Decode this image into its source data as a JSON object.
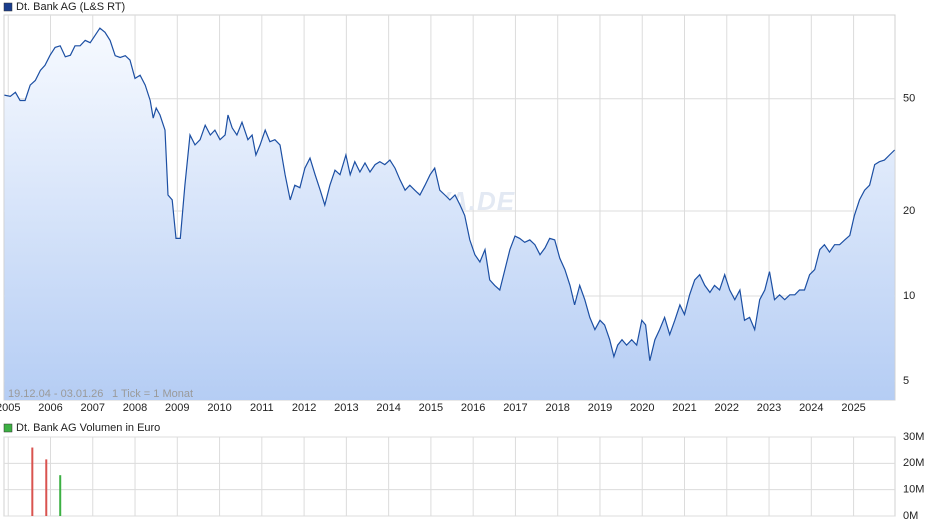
{
  "chart_data": [
    {
      "type": "line",
      "fill": true,
      "fill_gradient": [
        "#f7faff",
        "#b5cdf4"
      ],
      "series": [
        {
          "name": "Dt. Bank AG (L&S RT)",
          "color": "#1c4fa3",
          "legend_color": "#1a3d8c"
        }
      ],
      "x": [
        2004.91,
        2005.05,
        2005.17,
        2005.28,
        2005.4,
        2005.52,
        2005.64,
        2005.76,
        2005.87,
        2005.99,
        2006.11,
        2006.23,
        2006.35,
        2006.47,
        2006.58,
        2006.7,
        2006.82,
        2006.94,
        2007.06,
        2007.17,
        2007.29,
        2007.41,
        2007.53,
        2007.65,
        2007.77,
        2007.88,
        2008.0,
        2008.12,
        2008.24,
        2008.36,
        2008.43,
        2008.5,
        2008.59,
        2008.71,
        2008.78,
        2008.88,
        2008.97,
        2009.07,
        2009.18,
        2009.3,
        2009.42,
        2009.54,
        2009.66,
        2009.78,
        2009.89,
        2010.01,
        2010.13,
        2010.2,
        2010.3,
        2010.41,
        2010.53,
        2010.67,
        2010.77,
        2010.86,
        2010.96,
        2011.08,
        2011.19,
        2011.31,
        2011.43,
        2011.55,
        2011.67,
        2011.78,
        2011.9,
        2012.02,
        2012.14,
        2012.26,
        2012.38,
        2012.49,
        2012.61,
        2012.73,
        2012.85,
        2012.99,
        2013.09,
        2013.2,
        2013.32,
        2013.44,
        2013.56,
        2013.68,
        2013.79,
        2013.91,
        2014.03,
        2014.15,
        2014.27,
        2014.39,
        2014.5,
        2014.62,
        2014.74,
        2014.86,
        2014.98,
        2015.09,
        2015.21,
        2015.33,
        2015.45,
        2015.57,
        2015.69,
        2015.8,
        2015.92,
        2016.04,
        2016.16,
        2016.28,
        2016.39,
        2016.51,
        2016.63,
        2016.75,
        2016.87,
        2016.99,
        2017.1,
        2017.22,
        2017.34,
        2017.46,
        2017.58,
        2017.7,
        2017.81,
        2017.93,
        2018.05,
        2018.17,
        2018.29,
        2018.4,
        2018.52,
        2018.64,
        2018.76,
        2018.88,
        2019.0,
        2019.11,
        2019.23,
        2019.33,
        2019.42,
        2019.52,
        2019.63,
        2019.75,
        2019.87,
        2019.99,
        2020.08,
        2020.18,
        2020.3,
        2020.41,
        2020.53,
        2020.65,
        2020.77,
        2020.89,
        2021.0,
        2021.12,
        2021.24,
        2021.36,
        2021.48,
        2021.6,
        2021.71,
        2021.83,
        2021.95,
        2022.07,
        2022.19,
        2022.31,
        2022.42,
        2022.54,
        2022.66,
        2022.78,
        2022.9,
        2023.01,
        2023.13,
        2023.25,
        2023.37,
        2023.49,
        2023.61,
        2023.72,
        2023.84,
        2023.96,
        2024.08,
        2024.2,
        2024.31,
        2024.43,
        2024.55,
        2024.67,
        2024.79,
        2024.91,
        2025.02,
        2025.14,
        2025.26,
        2025.38,
        2025.5,
        2025.61,
        2025.73,
        2025.85,
        2025.97
      ],
      "values": [
        51.5,
        51,
        52.7,
        49.3,
        49.3,
        55.9,
        58,
        63,
        65.7,
        71.3,
        76,
        77,
        70.4,
        71.3,
        77,
        77,
        80.5,
        79,
        84,
        89,
        86,
        80.5,
        71,
        70,
        71,
        68.5,
        59,
        60.6,
        55.9,
        49.3,
        42.7,
        46.3,
        43.8,
        38.7,
        22.8,
        21.9,
        16,
        16,
        24.7,
        37.2,
        34.3,
        35.8,
        40.3,
        37.2,
        38.7,
        35.8,
        37.2,
        43.8,
        39.4,
        37.2,
        41.3,
        35.8,
        37.2,
        31.6,
        34.3,
        38.7,
        35.2,
        35.8,
        34.3,
        26.9,
        21.9,
        24.7,
        24.2,
        28.4,
        30.8,
        26.9,
        23.7,
        21,
        24.7,
        27.9,
        26.9,
        31.6,
        26.9,
        29.9,
        27.5,
        29.6,
        27.5,
        29.2,
        29.9,
        29.2,
        30.3,
        28.4,
        25.8,
        23.7,
        24.7,
        23.7,
        22.8,
        24.7,
        26.9,
        28.4,
        23.7,
        22.8,
        21.9,
        22.8,
        21,
        19.3,
        15.8,
        14,
        13.2,
        14.6,
        11.4,
        10.9,
        10.5,
        12.4,
        14.6,
        16.3,
        16,
        15.5,
        15.8,
        15.2,
        14,
        14.8,
        16,
        15.8,
        13.6,
        12.4,
        10.9,
        9.3,
        10.9,
        9.7,
        8.4,
        7.6,
        8.2,
        7.9,
        7,
        6.1,
        6.7,
        7,
        6.7,
        7,
        6.7,
        8.2,
        7.9,
        5.9,
        7,
        7.6,
        8.4,
        7.3,
        8.2,
        9.3,
        8.6,
        10.1,
        11.4,
        11.9,
        10.9,
        10.3,
        10.9,
        10.5,
        11.9,
        10.5,
        9.7,
        10.5,
        8.2,
        8.4,
        7.6,
        9.7,
        10.5,
        12.2,
        9.7,
        10.1,
        9.7,
        10.1,
        10.1,
        10.5,
        10.5,
        11.9,
        12.4,
        14.6,
        15.2,
        14.3,
        15.2,
        15.2,
        15.8,
        16.4,
        19.3,
        21.9,
        23.7,
        24.7,
        29.2,
        29.9,
        30.3,
        31.6,
        32.9
      ],
      "xlim": [
        2004.9,
        2025.98
      ],
      "xticks": [
        2005,
        2006,
        2007,
        2008,
        2009,
        2010,
        2011,
        2012,
        2013,
        2014,
        2015,
        2016,
        2017,
        2018,
        2019,
        2020,
        2021,
        2022,
        2023,
        2024,
        2025
      ],
      "ylim": [
        4.28,
        99
      ],
      "yticks": [
        5,
        10,
        20,
        50
      ],
      "log_scale": true,
      "grid": true,
      "date_range": "19.12.04 - 03.01.26",
      "tick_note": "1 Tick = 1 Monat",
      "watermark": "ARIVA.DE"
    },
    {
      "type": "bar",
      "series": [
        {
          "name": "Dt. Bank AG Volumen in Euro",
          "color": "#3cb043",
          "values": [
            26000000,
            21500000,
            15500000
          ],
          "bar_colors": [
            "#d9534f",
            "#d9534f",
            "#3cb043"
          ]
        }
      ],
      "x": [
        2005.57,
        2005.9,
        2006.23
      ],
      "xlim": [
        2004.9,
        2025.98
      ],
      "xticks": [
        2005,
        2006,
        2007,
        2008,
        2009,
        2010,
        2011,
        2012,
        2013,
        2014,
        2015,
        2016,
        2017,
        2018,
        2019,
        2020,
        2021,
        2022,
        2023,
        2024,
        2025
      ],
      "ylim": [
        0,
        30000000
      ],
      "yticks": [
        {
          "value": 0,
          "label": "0M"
        },
        {
          "value": 10000000,
          "label": "10M"
        },
        {
          "value": 20000000,
          "label": "20M"
        },
        {
          "value": 30000000,
          "label": "30M"
        }
      ],
      "grid": true
    }
  ]
}
